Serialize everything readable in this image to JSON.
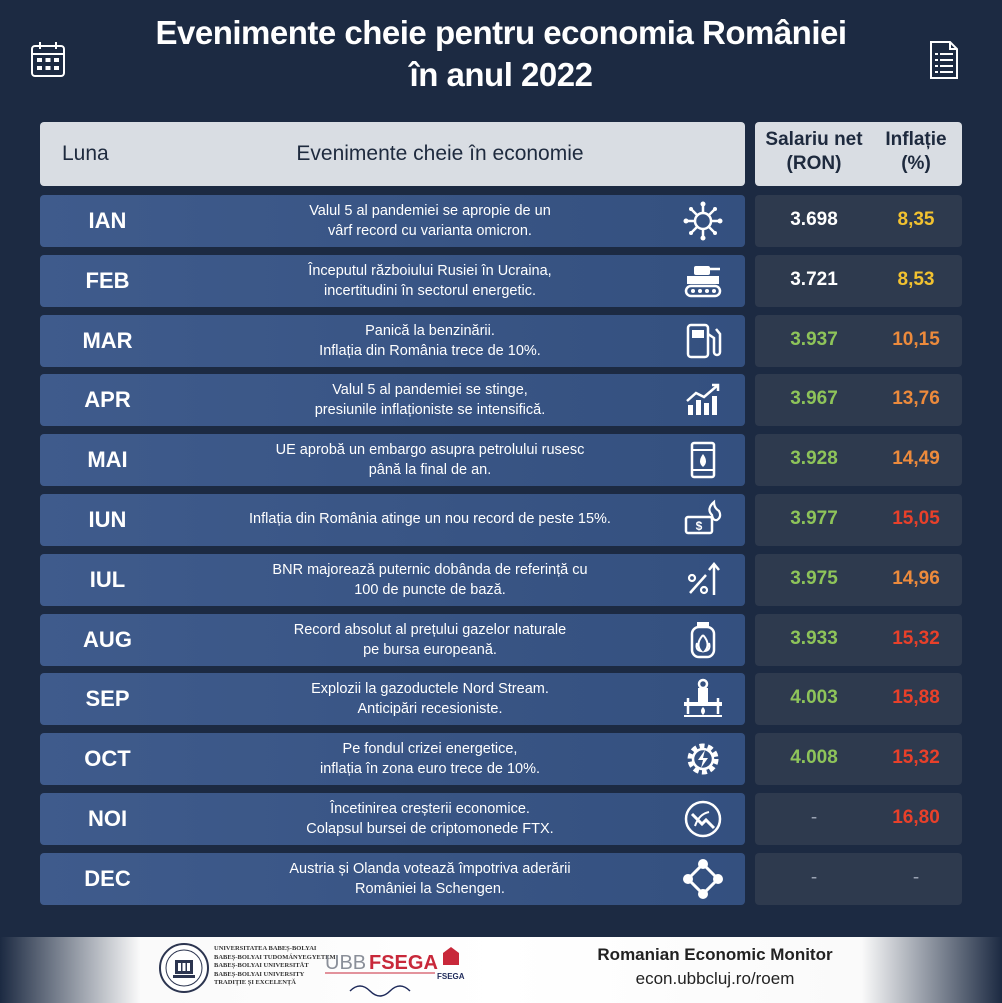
{
  "title": "Evenimente cheie pentru economia României\nîn anul 2022",
  "header": {
    "month": "Luna",
    "events": "Evenimente cheie în economie",
    "salary": "Salariu net\n(RON)",
    "inflation": "Inflație\n(%)"
  },
  "colors": {
    "salary_white": "#ffffff",
    "salary_green": "#8ec45a",
    "inflation_yellow": "#f2c230",
    "inflation_orange": "#ec8a3c",
    "inflation_red": "#e8402a",
    "dash": "#9aa3b3"
  },
  "rows": [
    {
      "month": "IAN",
      "event": "Valul 5 al pandemiei se apropie de un\nvârf record cu varianta omicron.",
      "icon": "virus-icon",
      "salary": "3.698",
      "inflation": "8,35"
    },
    {
      "month": "FEB",
      "event": "Începutul războiului Rusiei în Ucraina,\nincertitudini în sectorul energetic.",
      "icon": "tank-icon",
      "salary": "3.721",
      "inflation": "8,53"
    },
    {
      "month": "MAR",
      "event": "Panică la benzinării.\nInflația din România trece de 10%.",
      "icon": "fuel-pump-icon",
      "salary": "3.937",
      "inflation": "10,15"
    },
    {
      "month": "APR",
      "event": "Valul 5 al pandemiei se stinge,\npresiunile inflaționiste se intensifică.",
      "icon": "rising-chart-icon",
      "salary": "3.967",
      "inflation": "13,76"
    },
    {
      "month": "MAI",
      "event": "UE aprobă un embargo asupra petrolului rusesc\npână la final de an.",
      "icon": "oil-barrel-icon",
      "salary": "3.928",
      "inflation": "14,49"
    },
    {
      "month": "IUN",
      "event": "Inflația din România atinge un nou record de peste 15%.",
      "icon": "burning-money-icon",
      "salary": "3.977",
      "inflation": "15,05"
    },
    {
      "month": "IUL",
      "event": "BNR majorează puternic dobânda de referință cu\n100 de puncte de bază.",
      "icon": "percent-up-icon",
      "salary": "3.975",
      "inflation": "14,96"
    },
    {
      "month": "AUG",
      "event": "Record absolut al prețului gazelor naturale\npe bursa europeană.",
      "icon": "gas-cylinder-icon",
      "salary": "3.933",
      "inflation": "15,32"
    },
    {
      "month": "SEP",
      "event": "Explozii la gazoductele Nord Stream.\nAnticipări recesioniste.",
      "icon": "pipeline-icon",
      "salary": "4.003",
      "inflation": "15,88"
    },
    {
      "month": "OCT",
      "event": "Pe fondul crizei energetice,\ninflația în zona euro trece de 10%.",
      "icon": "energy-gear-icon",
      "salary": "4.008",
      "inflation": "15,32"
    },
    {
      "month": "NOI",
      "event": "Încetinirea creșterii economice.\nColapsul bursei de criptomonede FTX.",
      "icon": "crypto-coin-icon",
      "salary": "-",
      "inflation": "16,80"
    },
    {
      "month": "DEC",
      "event": "Austria și Olanda votează împotriva aderării\nRomâniei la Schengen.",
      "icon": "network-icon",
      "salary": "-",
      "inflation": "-"
    }
  ],
  "footer": {
    "university": "UNIVERSITATEA BABEȘ-BOLYAI\nBABEȘ-BOLYAI TUDOMÁNYEGYETEM\nBABEȘ-BOLYAI UNIVERSITÄT\nBABEȘ-BOLYAI UNIVERSITY\nTRADIȚIE ȘI EXCELENȚĂ",
    "faculty_logo": "UBB FSEGA",
    "monitor": "Romanian Economic Monitor",
    "url": "econ.ubbcluj.ro/roem"
  }
}
